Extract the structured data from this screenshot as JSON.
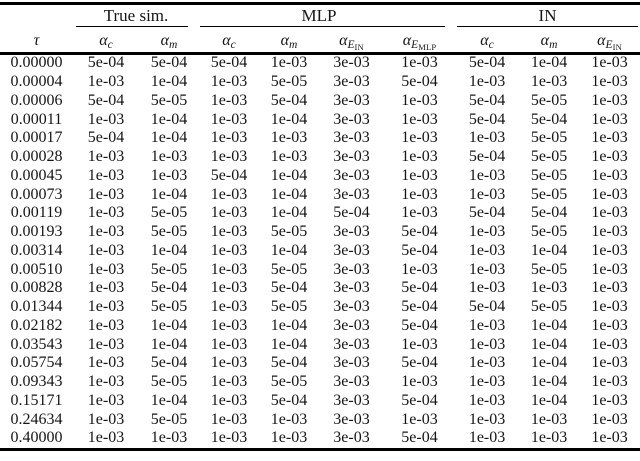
{
  "colors": {
    "background": "#ffffff",
    "text": "#151515",
    "rule": "#000000"
  },
  "table": {
    "groups": [
      {
        "label": "",
        "span": 1
      },
      {
        "label": "True sim.",
        "span": 2
      },
      {
        "label": "MLP",
        "span": 4
      },
      {
        "label": "IN",
        "span": 3
      }
    ],
    "columns": [
      {
        "name": "tau",
        "base": "τ",
        "sub": "",
        "subsub": ""
      },
      {
        "name": "alpha-c",
        "base": "α",
        "sub": "c",
        "subsub": ""
      },
      {
        "name": "alpha-m",
        "base": "α",
        "sub": "m",
        "subsub": ""
      },
      {
        "name": "alpha-c",
        "base": "α",
        "sub": "c",
        "subsub": ""
      },
      {
        "name": "alpha-m",
        "base": "α",
        "sub": "m",
        "subsub": ""
      },
      {
        "name": "alpha-e-in",
        "base": "α",
        "sub": "E",
        "subsub": "IN"
      },
      {
        "name": "alpha-e-mlp",
        "base": "α",
        "sub": "E",
        "subsub": "MLP"
      },
      {
        "name": "alpha-c",
        "base": "α",
        "sub": "c",
        "subsub": ""
      },
      {
        "name": "alpha-m",
        "base": "α",
        "sub": "m",
        "subsub": ""
      },
      {
        "name": "alpha-e-in",
        "base": "α",
        "sub": "E",
        "subsub": "IN"
      }
    ],
    "rows": [
      [
        "0.00000",
        "5e-04",
        "5e-04",
        "5e-04",
        "1e-03",
        "3e-03",
        "1e-03",
        "5e-04",
        "1e-04",
        "1e-03"
      ],
      [
        "0.00004",
        "1e-03",
        "1e-04",
        "1e-03",
        "5e-05",
        "3e-03",
        "5e-04",
        "1e-03",
        "1e-03",
        "1e-03"
      ],
      [
        "0.00006",
        "5e-04",
        "5e-05",
        "1e-03",
        "5e-04",
        "3e-03",
        "1e-03",
        "5e-04",
        "5e-05",
        "1e-03"
      ],
      [
        "0.00011",
        "1e-03",
        "1e-04",
        "1e-03",
        "1e-04",
        "3e-03",
        "1e-03",
        "5e-04",
        "5e-04",
        "1e-03"
      ],
      [
        "0.00017",
        "5e-04",
        "1e-04",
        "1e-03",
        "1e-03",
        "3e-03",
        "1e-03",
        "1e-03",
        "5e-05",
        "1e-03"
      ],
      [
        "0.00028",
        "1e-03",
        "1e-03",
        "1e-03",
        "1e-03",
        "3e-03",
        "1e-03",
        "5e-04",
        "5e-05",
        "1e-03"
      ],
      [
        "0.00045",
        "1e-03",
        "1e-03",
        "5e-04",
        "1e-04",
        "3e-03",
        "1e-03",
        "1e-03",
        "5e-05",
        "1e-03"
      ],
      [
        "0.00073",
        "1e-03",
        "1e-04",
        "1e-03",
        "1e-04",
        "3e-03",
        "1e-03",
        "1e-03",
        "5e-05",
        "1e-03"
      ],
      [
        "0.00119",
        "1e-03",
        "5e-05",
        "1e-03",
        "1e-04",
        "5e-04",
        "1e-03",
        "5e-04",
        "5e-04",
        "1e-03"
      ],
      [
        "0.00193",
        "1e-03",
        "5e-05",
        "1e-03",
        "5e-05",
        "3e-03",
        "5e-04",
        "1e-03",
        "5e-05",
        "1e-03"
      ],
      [
        "0.00314",
        "1e-03",
        "1e-04",
        "1e-03",
        "1e-04",
        "3e-03",
        "5e-04",
        "1e-03",
        "1e-04",
        "1e-03"
      ],
      [
        "0.00510",
        "1e-03",
        "5e-05",
        "1e-03",
        "5e-05",
        "3e-03",
        "1e-03",
        "1e-03",
        "5e-05",
        "1e-03"
      ],
      [
        "0.00828",
        "1e-03",
        "5e-04",
        "1e-03",
        "5e-04",
        "3e-03",
        "5e-04",
        "1e-03",
        "1e-03",
        "1e-03"
      ],
      [
        "0.01344",
        "1e-03",
        "5e-05",
        "1e-03",
        "5e-05",
        "3e-03",
        "5e-04",
        "5e-04",
        "5e-05",
        "1e-03"
      ],
      [
        "0.02182",
        "1e-03",
        "1e-04",
        "1e-03",
        "1e-04",
        "3e-03",
        "5e-04",
        "1e-03",
        "1e-04",
        "1e-03"
      ],
      [
        "0.03543",
        "1e-03",
        "1e-04",
        "1e-03",
        "1e-04",
        "3e-03",
        "1e-03",
        "1e-03",
        "1e-04",
        "1e-03"
      ],
      [
        "0.05754",
        "1e-03",
        "5e-04",
        "1e-03",
        "5e-04",
        "3e-03",
        "5e-04",
        "1e-03",
        "1e-04",
        "1e-03"
      ],
      [
        "0.09343",
        "1e-03",
        "5e-05",
        "1e-03",
        "5e-05",
        "3e-03",
        "1e-03",
        "1e-03",
        "1e-04",
        "1e-03"
      ],
      [
        "0.15171",
        "1e-03",
        "1e-04",
        "1e-03",
        "5e-04",
        "3e-03",
        "5e-04",
        "1e-03",
        "1e-04",
        "1e-03"
      ],
      [
        "0.24634",
        "1e-03",
        "5e-05",
        "1e-03",
        "1e-03",
        "3e-03",
        "1e-03",
        "1e-03",
        "1e-03",
        "1e-03"
      ],
      [
        "0.40000",
        "1e-03",
        "1e-03",
        "1e-03",
        "1e-03",
        "3e-03",
        "5e-04",
        "1e-03",
        "1e-03",
        "1e-03"
      ]
    ]
  }
}
